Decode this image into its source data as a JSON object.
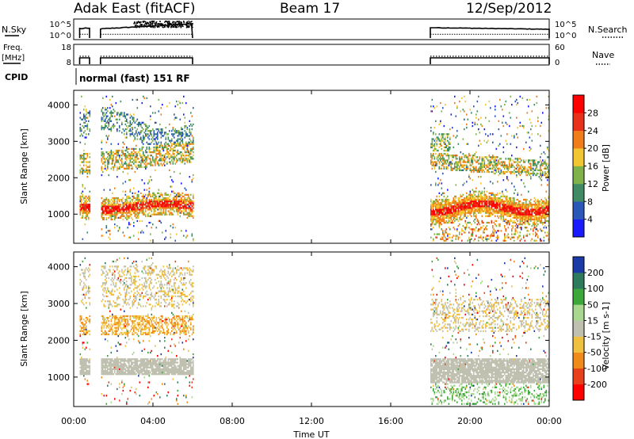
{
  "header": {
    "radar": "Adak East (fitACF)",
    "beam": "Beam 17",
    "date": "12/Sep/2012"
  },
  "top_panels": {
    "nsky_label": "N.Sky",
    "nsky_ticks": [
      "10^5",
      "10^0"
    ],
    "nsearch_label": "N.Search",
    "nsearch_ticks": [
      "10^5",
      "10^0"
    ],
    "freq_label_1": "Freq.",
    "freq_label_2": "[MHz]",
    "freq_ticks": [
      "18",
      "8"
    ],
    "nave_label": "Nave",
    "nave_ticks": [
      "60",
      "0"
    ],
    "cpid_label": "CPID",
    "cpid_text": "normal (fast) 151 RF"
  },
  "chart_data": [
    {
      "type": "heatmap",
      "title": "",
      "xlabel": "",
      "ylabel": "Slant Range [km]",
      "xlim": [
        "00:00",
        "00:00"
      ],
      "ylim": [
        200,
        4400
      ],
      "y_ticks": [
        1000,
        2000,
        3000,
        4000
      ],
      "colorbar_label": "Power [dB]",
      "colorbar_ticks": [
        4,
        8,
        12,
        16,
        20,
        24,
        28
      ],
      "colorbar_colors": [
        "#1a1aff",
        "#2a57b8",
        "#3f8c64",
        "#7fb24a",
        "#f2c630",
        "#f07c1a",
        "#e8301a",
        "#ff0000"
      ],
      "data_gaps": [
        [
          "00:50",
          "01:20"
        ],
        [
          "06:00",
          "18:00"
        ]
      ],
      "features": [
        {
          "name": "ionospheric band",
          "range_km": [
            1000,
            1400
          ],
          "time": [
            "00:20",
            "06:00"
          ],
          "level_db": 28
        },
        {
          "name": "ionospheric band",
          "range_km": [
            900,
            1500
          ],
          "time": [
            "18:00",
            "24:00"
          ],
          "level_db": 28
        },
        {
          "name": "upper band",
          "range_km": [
            2000,
            2800
          ],
          "time": [
            "00:20",
            "06:00"
          ],
          "level_db": 16
        }
      ]
    },
    {
      "type": "heatmap",
      "title": "",
      "xlabel": "Time UT",
      "ylabel": "Slant Range [km]",
      "xlim": [
        "00:00",
        "00:00"
      ],
      "ylim": [
        200,
        4400
      ],
      "x_ticks": [
        "00:00",
        "04:00",
        "08:00",
        "12:00",
        "16:00",
        "20:00",
        "00:00"
      ],
      "y_ticks": [
        1000,
        2000,
        3000,
        4000
      ],
      "colorbar_label": "Velocity [m s-1]",
      "colorbar_ticks": [
        200,
        100,
        50,
        15,
        -15,
        -50,
        -100,
        -200
      ],
      "colorbar_colors": [
        "#1a3aa8",
        "#2e7a5c",
        "#3ca83c",
        "#a8d890",
        "#c0c0b0",
        "#f0c040",
        "#f08a1a",
        "#e8401a",
        "#ff0000"
      ],
      "data_gaps": [
        [
          "00:50",
          "01:20"
        ],
        [
          "06:00",
          "18:00"
        ]
      ]
    }
  ]
}
